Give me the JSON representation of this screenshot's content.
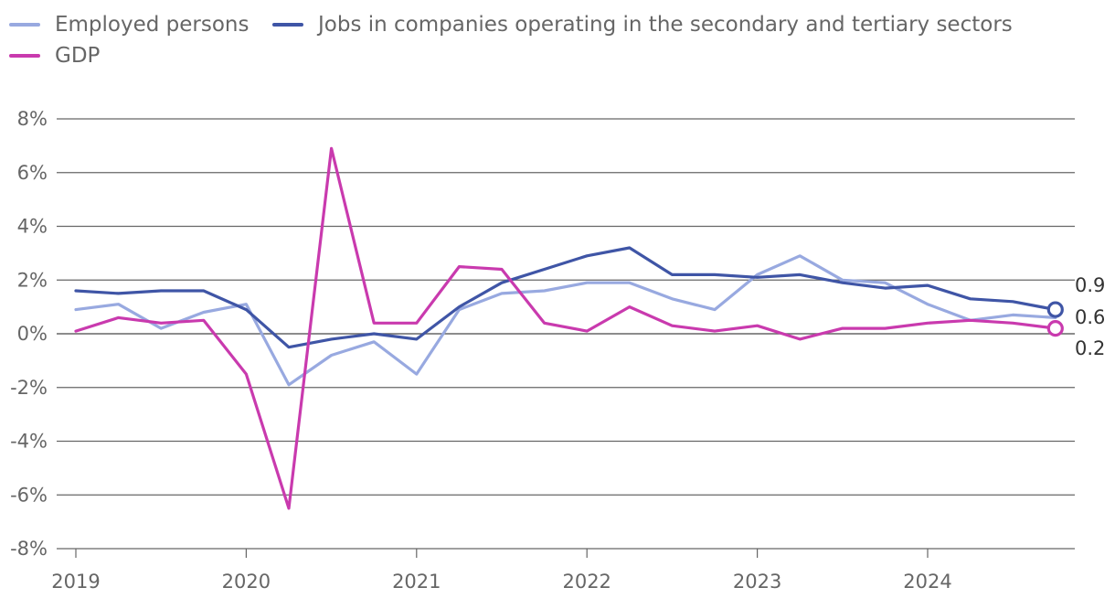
{
  "chart_data": {
    "type": "line",
    "title": "",
    "xlabel": "",
    "ylabel": "",
    "ylim": [
      -8,
      8
    ],
    "yticks": [
      -8,
      -6,
      -4,
      -2,
      0,
      2,
      4,
      6,
      8
    ],
    "ytick_labels": [
      "-8%",
      "-6%",
      "-4%",
      "-2%",
      "0%",
      "2%",
      "4%",
      "6%",
      "8%"
    ],
    "x_year_ticks": [
      "2019",
      "2020",
      "2021",
      "2022",
      "2023",
      "2024"
    ],
    "x": [
      "2019Q1",
      "2019Q2",
      "2019Q3",
      "2019Q4",
      "2020Q1",
      "2020Q2",
      "2020Q3",
      "2020Q4",
      "2021Q1",
      "2021Q2",
      "2021Q3",
      "2021Q4",
      "2022Q1",
      "2022Q2",
      "2022Q3",
      "2022Q4",
      "2023Q1",
      "2023Q2",
      "2023Q3",
      "2023Q4",
      "2024Q1",
      "2024Q2",
      "2024Q3",
      "2024Q4"
    ],
    "legend_position": "top-left",
    "series": [
      {
        "name": "Employed persons",
        "color": "#98A9E0",
        "values": [
          0.9,
          1.1,
          0.2,
          0.8,
          1.1,
          -1.9,
          -0.8,
          -0.3,
          -1.5,
          0.9,
          1.5,
          1.6,
          1.9,
          1.9,
          1.3,
          0.9,
          2.2,
          2.9,
          2.0,
          1.9,
          1.1,
          0.5,
          0.7,
          0.6
        ]
      },
      {
        "name": "Jobs in companies operating in the secondary and tertiary sectors",
        "color": "#3F55A6",
        "values": [
          1.6,
          1.5,
          1.6,
          1.6,
          0.9,
          -0.5,
          -0.2,
          0.0,
          -0.2,
          1.0,
          1.9,
          2.4,
          2.9,
          3.2,
          2.2,
          2.2,
          2.1,
          2.2,
          1.9,
          1.7,
          1.8,
          1.3,
          1.2,
          0.9
        ]
      },
      {
        "name": "GDP",
        "color": "#C93AAE",
        "values": [
          0.1,
          0.6,
          0.4,
          0.5,
          -1.5,
          -6.5,
          6.9,
          0.4,
          0.4,
          2.5,
          2.4,
          0.4,
          0.1,
          1.0,
          0.3,
          0.1,
          0.3,
          -0.2,
          0.2,
          0.2,
          0.4,
          0.5,
          0.4,
          0.2
        ]
      }
    ],
    "end_labels": [
      "0.9",
      "0.6",
      "0.2"
    ]
  },
  "colors": {
    "grid": "#666666",
    "axis_text": "#666666",
    "end_text": "#333333"
  }
}
